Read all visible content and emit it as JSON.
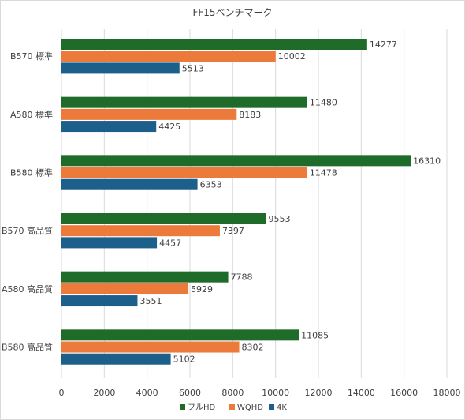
{
  "chart_data": {
    "type": "bar",
    "orientation": "horizontal",
    "title": "FF15ベンチマーク",
    "categories": [
      "B570 標準",
      "A580 標準",
      "B580 標準",
      "B570 高品質",
      "A580 高品質",
      "B580 高品質"
    ],
    "series": [
      {
        "name": "フルHD",
        "color": "#1e6b2a",
        "values": [
          14277,
          11480,
          16310,
          9553,
          7788,
          11085
        ]
      },
      {
        "name": "WQHD",
        "color": "#ec7a3a",
        "values": [
          10002,
          8183,
          11478,
          7397,
          5929,
          8302
        ]
      },
      {
        "name": "4K",
        "color": "#1b5f8a",
        "values": [
          5513,
          4425,
          6353,
          4457,
          3551,
          5102
        ]
      }
    ],
    "xlim": [
      0,
      18000
    ],
    "xticks": [
      0,
      2000,
      4000,
      6000,
      8000,
      10000,
      12000,
      14000,
      16000,
      18000
    ],
    "grid": true,
    "legend_position": "bottom"
  }
}
